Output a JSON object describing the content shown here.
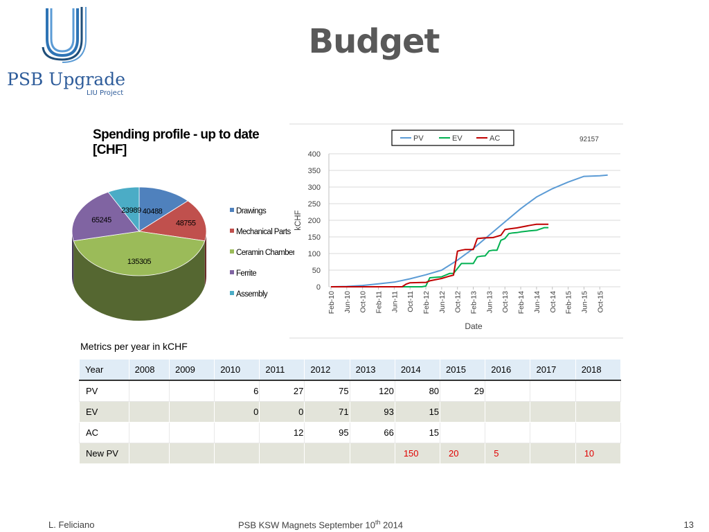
{
  "logo": {
    "name": "PSB Upgrade",
    "subtitle": "LIU Project"
  },
  "slide": {
    "title": "Budget"
  },
  "chart_data": [
    {
      "type": "pie",
      "title": "Spending profile - up to date [CHF]",
      "categories": [
        "Drawings",
        "Mechanical Parts",
        "Ceramin Chamber",
        "Ferrite",
        "Assembly"
      ],
      "values": [
        40488,
        48755,
        135305,
        65245,
        23989
      ],
      "labels": [
        "40488",
        "48755",
        "135305",
        "65245",
        "23989"
      ],
      "colors": [
        "#4f81bd",
        "#c0504d",
        "#9bbb59",
        "#8064a2",
        "#4bacc6"
      ],
      "legend_position": "right"
    },
    {
      "type": "line",
      "ylabel": "kCHF",
      "xlabel": "Date",
      "annotation": "92157",
      "ylim": [
        0,
        400
      ],
      "yticks": [
        0,
        50,
        100,
        150,
        200,
        250,
        300,
        350,
        400
      ],
      "xticks": [
        "Feb-10",
        "Jun-10",
        "Oct-10",
        "Feb-11",
        "Jun-11",
        "Oct-11",
        "Feb-12",
        "Jun-12",
        "Oct-12",
        "Feb-13",
        "Jun-13",
        "Oct-13",
        "Feb-14",
        "Jun-14",
        "Oct-14",
        "Feb-15",
        "Jun-15",
        "Oct-15"
      ],
      "grid": "horizontal",
      "legend_position": "top",
      "series": [
        {
          "name": "PV",
          "color": "#5b9bd5",
          "x": [
            "Feb-10",
            "Jun-10",
            "Oct-10",
            "Feb-11",
            "Jun-11",
            "Oct-11",
            "Feb-12",
            "Jun-12",
            "Oct-12",
            "Feb-13",
            "Jun-13",
            "Oct-13",
            "Feb-14",
            "Jun-14",
            "Oct-14",
            "Feb-15",
            "Jun-15",
            "Oct-15",
            "Dec-15"
          ],
          "y": [
            0,
            1,
            4,
            9,
            14,
            24,
            36,
            50,
            80,
            115,
            155,
            195,
            235,
            270,
            295,
            315,
            332,
            334,
            336
          ]
        },
        {
          "name": "EV",
          "color": "#00b050",
          "x": [
            "Feb-10",
            "Oct-11",
            "Jan-12",
            "Feb-12",
            "Mar-12",
            "Jun-12",
            "Aug-12",
            "Sep-12",
            "Nov-12",
            "Dec-12",
            "Feb-13",
            "Mar-13",
            "Apr-13",
            "May-13",
            "Jun-13",
            "Jul-13",
            "Aug-13",
            "Sep-13",
            "Oct-13",
            "Nov-13",
            "Dec-13",
            "Jan-14",
            "Feb-14",
            "Apr-14",
            "Jun-14",
            "Aug-14",
            "Sep-14"
          ],
          "y": [
            0,
            0,
            0,
            2,
            27,
            30,
            40,
            40,
            70,
            70,
            70,
            90,
            92,
            93,
            108,
            110,
            110,
            140,
            145,
            160,
            162,
            163,
            165,
            168,
            170,
            178,
            178
          ]
        },
        {
          "name": "AC",
          "color": "#c00000",
          "x": [
            "Feb-10",
            "Aug-11",
            "Sep-11",
            "Oct-11",
            "Jan-12",
            "Feb-12",
            "Mar-12",
            "Jun-12",
            "Aug-12",
            "Sep-12",
            "Oct-12",
            "Nov-12",
            "Dec-12",
            "Feb-13",
            "Mar-13",
            "Apr-13",
            "May-13",
            "Jul-13",
            "Sep-13",
            "Oct-13",
            "Nov-13",
            "Jan-14",
            "Apr-14",
            "May-14",
            "Jun-14",
            "Sep-14"
          ],
          "y": [
            0,
            0,
            8,
            12,
            13,
            13,
            18,
            25,
            32,
            35,
            107,
            110,
            112,
            112,
            145,
            146,
            147,
            148,
            155,
            172,
            174,
            177,
            184,
            186,
            188,
            188
          ]
        }
      ]
    }
  ],
  "table": {
    "caption": "Metrics per year in kCHF",
    "header": [
      "Year",
      "2008",
      "2009",
      "2010",
      "2011",
      "2012",
      "2013",
      "2014",
      "2015",
      "2016",
      "2017",
      "2018"
    ],
    "rows": [
      {
        "label": "PV",
        "cells": [
          "",
          "",
          "6",
          "27",
          "75",
          "120",
          "80",
          "29",
          "",
          "",
          ""
        ]
      },
      {
        "label": "EV",
        "cells": [
          "",
          "",
          "0",
          "0",
          "71",
          "93",
          "15",
          "",
          "",
          "",
          ""
        ]
      },
      {
        "label": "AC",
        "cells": [
          "",
          "",
          "",
          "12",
          "95",
          "66",
          "15",
          "",
          "",
          "",
          ""
        ]
      },
      {
        "label": "New PV",
        "cells": [
          "",
          "",
          "",
          "",
          "",
          "",
          "150",
          "20",
          "5",
          "",
          "10"
        ]
      }
    ]
  },
  "footer": {
    "author": "L. Feliciano",
    "event_before": "PSB KSW Magnets September 10",
    "event_sup": "th",
    "event_after": " 2014",
    "page": "13"
  }
}
